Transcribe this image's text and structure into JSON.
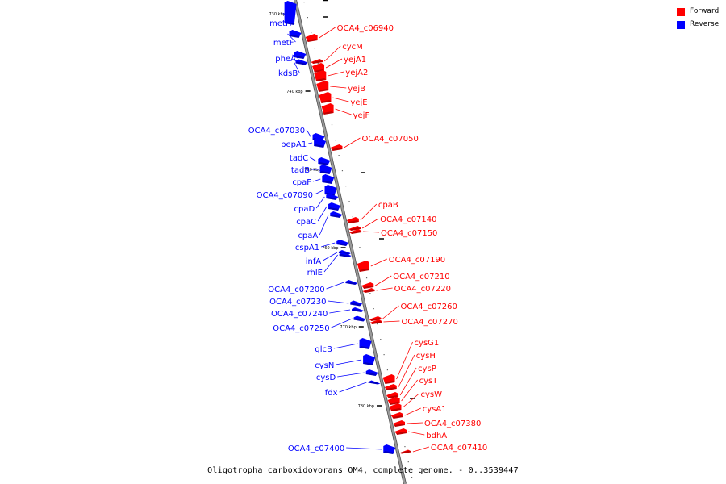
{
  "colors": {
    "forward": "#ff0000",
    "reverse": "#0000ff",
    "axis": "#999999"
  },
  "legend": [
    {
      "label": "Forward",
      "color": "#ff0000"
    },
    {
      "label": "Reverse",
      "color": "#0000ff"
    }
  ],
  "caption": "Oligotropha carboxidovorans OM4, complete genome. - 0..3539447",
  "ticks": [
    "730 kbp",
    "740 kbp",
    "750 kbp",
    "760 kbp",
    "770 kbp",
    "780 kbp"
  ],
  "reverse_genes": [
    "metH",
    "metF",
    "pheA",
    "kdsB",
    "OCA4_c07030",
    "pepA1",
    "tadC",
    "tadB",
    "cpaF",
    "OCA4_c07090",
    "cpaD",
    "cpaC",
    "cpaA",
    "cspA1",
    "infA",
    "rhlE",
    "OCA4_c07200",
    "OCA4_c07230",
    "OCA4_c07240",
    "OCA4_c07250",
    "glcB",
    "cysN",
    "cysD",
    "fdx",
    "OCA4_c07400"
  ],
  "forward_genes": [
    "OCA4_c06940",
    "cycM",
    "yejA1",
    "yejA2",
    "yejB",
    "yejE",
    "yejF",
    "OCA4_c07050",
    "cpaB",
    "OCA4_c07140",
    "OCA4_c07150",
    "OCA4_c07190",
    "OCA4_c07210",
    "OCA4_c07220",
    "OCA4_c07260",
    "OCA4_c07270",
    "cysG1",
    "cysH",
    "cysP",
    "cysT",
    "cysW",
    "cysA1",
    "OCA4_c07380",
    "bdhA",
    "OCA4_c07410"
  ]
}
